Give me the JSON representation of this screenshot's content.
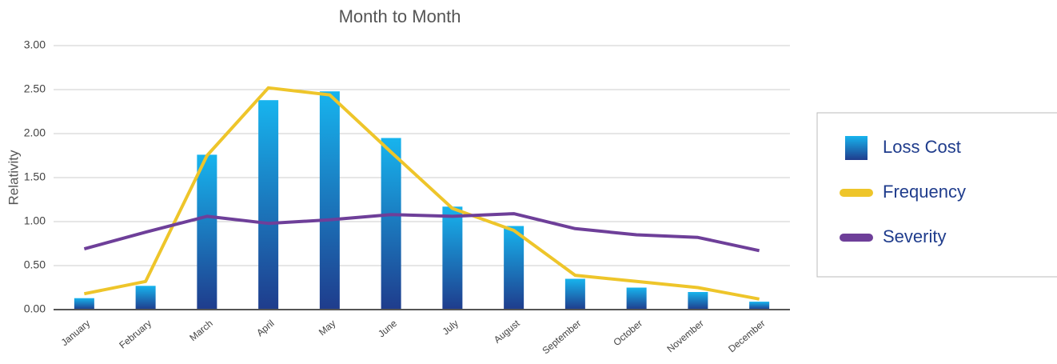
{
  "chart_data": {
    "type": "bar-line",
    "title": "Month to Month",
    "y_label": "Relativity",
    "categories": [
      "January",
      "February",
      "March",
      "April",
      "May",
      "June",
      "July",
      "August",
      "September",
      "October",
      "November",
      "December"
    ],
    "series": [
      {
        "name": "Loss Cost",
        "type": "bar",
        "color": [
          "#17b4ee",
          "#1f3c8c"
        ],
        "values": [
          0.13,
          0.27,
          1.76,
          2.38,
          2.48,
          1.95,
          1.17,
          0.95,
          0.35,
          0.25,
          0.2,
          0.09
        ]
      },
      {
        "name": "Frequency",
        "type": "line",
        "color": "#eec52a",
        "values": [
          0.18,
          0.32,
          1.75,
          2.52,
          2.44,
          1.79,
          1.15,
          0.9,
          0.39,
          0.32,
          0.25,
          0.12
        ]
      },
      {
        "name": "Severity",
        "type": "line",
        "color": "#6e3f99",
        "values": [
          0.69,
          0.88,
          1.06,
          0.98,
          1.02,
          1.08,
          1.06,
          1.09,
          0.92,
          0.85,
          0.82,
          0.67
        ]
      }
    ],
    "ylim": [
      0,
      3
    ],
    "yticks": [
      {
        "value": 0,
        "label": "0.00"
      },
      {
        "value": 0.5,
        "label": "0.50"
      },
      {
        "value": 1,
        "label": "1.00"
      },
      {
        "value": 1.5,
        "label": "1.50"
      },
      {
        "value": 2,
        "label": "2.00"
      },
      {
        "value": 2.5,
        "label": "2.50"
      },
      {
        "value": 3,
        "label": "3.00"
      }
    ],
    "grid": true,
    "legend": "right"
  }
}
